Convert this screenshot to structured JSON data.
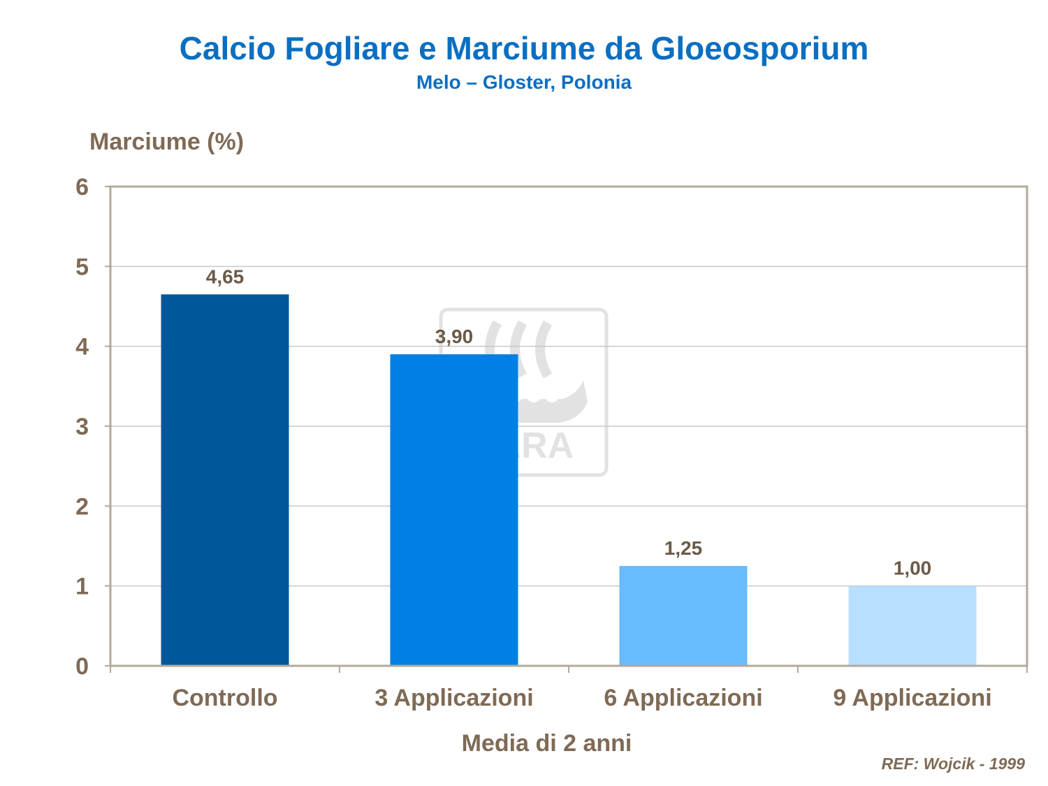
{
  "chart_data": {
    "type": "bar",
    "title": "Calcio Fogliare e Marciume da Gloeosporium",
    "subtitle": "Melo – Gloster, Polonia",
    "ylabel": "Marciume (%)",
    "xlabel": "Media di 2 anni",
    "categories": [
      "Controllo",
      "3 Applicazioni",
      "6 Applicazioni",
      "9 Applicazioni"
    ],
    "values": [
      4.65,
      3.9,
      1.25,
      1.0
    ],
    "data_labels": [
      "4,65",
      "3,90",
      "1,25",
      "1,00"
    ],
    "bar_colors": [
      "#005799",
      "#0080e3",
      "#66bcff",
      "#b8dfff"
    ],
    "ylim": [
      0,
      6
    ],
    "yticks": [
      0,
      1,
      2,
      3,
      4,
      5,
      6
    ],
    "grid": true,
    "legend": "none"
  },
  "ref": "REF: Wojcik - 1999",
  "watermark": {
    "text": "YARA",
    "color": "#d9d9d9"
  }
}
